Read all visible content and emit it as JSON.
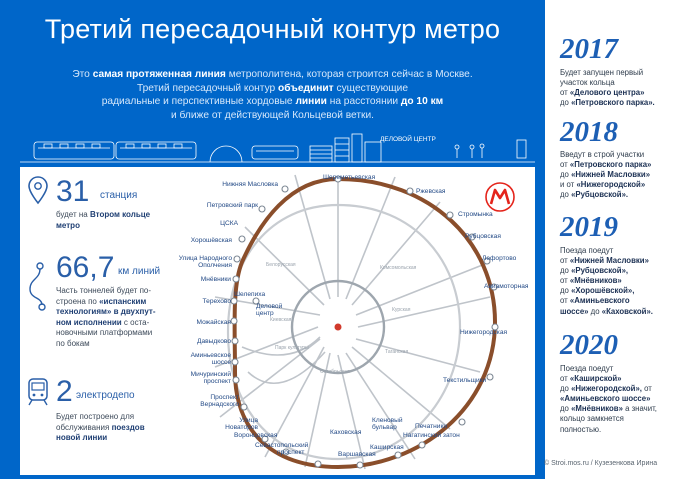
{
  "title": "Третий пересадочный контур метро",
  "intro": {
    "l1_a": "Это ",
    "l1_b": "самая протяженная линия",
    "l1_c": " метрополитена, которая строится сейчас в Москве.",
    "l2_a": "Третий пересадочный контур ",
    "l2_b": "объединит",
    "l2_c": " существующие",
    "l3_a": "радиальные и перспективные хордовые ",
    "l3_b": "линии",
    "l3_c": " на расстоянии ",
    "l3_d": "до 10 км",
    "l4": "и ближе от действующей Кольцевой ветки."
  },
  "strip_label": "ДЕЛОВОЙ ЦЕНТР",
  "stats": {
    "stations": {
      "number": "31",
      "unit": "станция",
      "d1_a": "будет на ",
      "d1_b": "Втором кольце",
      "d2": "метро"
    },
    "length": {
      "number": "66,7",
      "unit": "км линий",
      "d1": "Часть тоннелей будет по-",
      "d2_a": "строена по ",
      "d2_b": "«испанским",
      "d3": "технологиям» в двухпут-",
      "d4": "ном исполнении",
      "d4_b": " с оста-",
      "d5": "новочными платформами",
      "d6": "по бокам"
    },
    "depots": {
      "number": "2",
      "unit": "электродепо",
      "d1": "Будет построено для",
      "d2_a": "обслуживания ",
      "d2_b": "поездов",
      "d3": "новой линии"
    }
  },
  "stations": {
    "sheremetyevskaya": "Шереметьевская",
    "nizhnyaya_maslovka": "Нижняя Масловка",
    "rzhevskaya": "Ржевская",
    "petrovsky_park": "Петровский парк",
    "stromynka": "Стромынка",
    "cska": "ЦСКА",
    "khoroshevskaya": "Хорошёвская",
    "rubtsovskaya": "Рубцовская",
    "ul_narodnogo_1": "Улица Народного",
    "ul_narodnogo_2": "Ополчения",
    "lefortovo": "Лефортово",
    "mnevniki": "Мнёвники",
    "aviamotornaya": "Авиамоторная",
    "terekhovo": "Терехово",
    "shelepikha": "Шелепиха",
    "delovoy_1": "Деловой",
    "delovoy_2": "центр",
    "mozhayskaya": "Можайская",
    "nizhegorodskaya": "Нижегородская",
    "davydkovo": "Давыдково",
    "aminyevskoe_1": "Аминьевское",
    "aminyevskoe_2": "шоссе",
    "michurinsky_1": "Мичуринский",
    "michurinsky_2": "проспект",
    "tekstilshchiki": "Текстильщики",
    "vernadskogo_1": "Проспект",
    "vernadskogo_2": "Вернадского",
    "novatorov_1": "Улица",
    "novatorov_2": "Новаторов",
    "klenovy_1": "Кленовый",
    "klenovy_2": "бульвар",
    "pechatniki": "Печатники",
    "vorontsovskaya": "Воронцовская",
    "kakhovskaya": "Каховская",
    "nagatinsky": "Нагатинский затон",
    "sevastopolsky_1": "Севастопольский",
    "sevastopolsky_2": "проспект",
    "kashirskaya": "Каширская",
    "varshavskaya": "Варшавская"
  },
  "inner": {
    "belorusskaya": "Белорусская",
    "park_kultury": "Парк культуры",
    "kievskaya": "Киевская",
    "oktyabrskaya": "Октябрьская",
    "taganskaya": "Таганская",
    "kurskaya": "Курская",
    "komsomolskaya": "Комсомольская"
  },
  "timeline": [
    {
      "year": "2017",
      "d1": "Будет запущен первый",
      "d2": "участок кольца",
      "d3_a": "от ",
      "d3_b": "«Делового центра»",
      "d4_a": "до ",
      "d4_b": "«Петровского парка»."
    },
    {
      "year": "2018",
      "d1": "Введут в строй участки",
      "d2_a": "от ",
      "d2_b": "«Петровского парка»",
      "d3_a": "до ",
      "d3_b": "«Нижней Масловки»",
      "d4_a": "и от ",
      "d4_b": "«Нижегородской»",
      "d5_a": "до ",
      "d5_b": "«Рубцовской»."
    },
    {
      "year": "2019",
      "d1": "Поезда поедут",
      "d2_a": "от ",
      "d2_b": "«Нижней Масловки»",
      "d3_a": "до ",
      "d3_b": "«Рубцовской»,",
      "d4_a": "от ",
      "d4_b": "«Мнёвников»",
      "d5_a": "до ",
      "d5_b": "«Хорошёвской»,",
      "d6_a": "от ",
      "d6_b": "«Аминьевского",
      "d7_b": "шоссе»",
      "d7_c": " до ",
      "d7_d": "«Каховской»."
    },
    {
      "year": "2020",
      "d1": "Поезда поедут",
      "d2_a": "от ",
      "d2_b": "«Каширской»",
      "d3_a": "до ",
      "d3_b": "«Нижегородской»,",
      "d3_c": " от",
      "d4_b": "«Аминьевского шоссе»",
      "d5_a": "до ",
      "d5_b": "«Мнёвников»",
      "d5_c": " а значит,",
      "d6": "кольцо замкнется",
      "d7": "полностью."
    }
  ],
  "copyright": "© Stroi.mos.ru / Кузезенкова Ирина",
  "colors": {
    "background": "#0066c9",
    "ring": "#8a4e2b",
    "accent": "#1d5fb4",
    "metro_logo": "#e4241b"
  }
}
